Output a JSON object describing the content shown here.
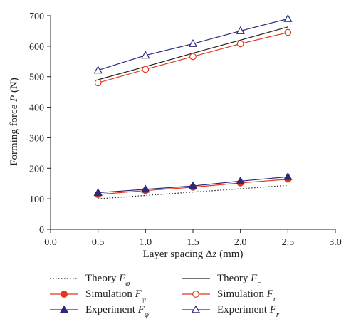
{
  "chart_data": {
    "type": "line",
    "xlabel": "Layer spacing Δz (mm)",
    "ylabel": "Forming force P (N)",
    "xlim": [
      0.0,
      3.0
    ],
    "ylim": [
      0,
      700
    ],
    "xticks": [
      "0.0",
      "0.5",
      "1.0",
      "1.5",
      "2.0",
      "2.5",
      "3.0"
    ],
    "yticks": [
      "0",
      "100",
      "200",
      "300",
      "400",
      "500",
      "600",
      "700"
    ],
    "x": [
      0.5,
      1.0,
      1.5,
      2.0,
      2.5
    ],
    "legend_position": "bottom",
    "series": [
      {
        "name": "Theory Fφ",
        "values": [
          100,
          111,
          122,
          133,
          144
        ],
        "color": "#231f20",
        "line": "dotted",
        "marker": "none"
      },
      {
        "name": "Simulation Fφ",
        "values": [
          114,
          127,
          138,
          152,
          164
        ],
        "color": "#e2371f",
        "line": "solid",
        "marker": "circle-filled"
      },
      {
        "name": "Experiment Fφ",
        "values": [
          120,
          131,
          142,
          158,
          172
        ],
        "color": "#2a2a7c",
        "line": "solid",
        "marker": "triangle-filled"
      },
      {
        "name": "Theory Fr",
        "values": [
          490,
          533,
          577,
          620,
          663
        ],
        "color": "#231f20",
        "line": "solid",
        "marker": "none"
      },
      {
        "name": "Simulation Fr",
        "values": [
          480,
          524,
          566,
          608,
          645
        ],
        "color": "#e2371f",
        "line": "solid",
        "marker": "circle-open"
      },
      {
        "name": "Experiment Fr",
        "values": [
          521,
          570,
          608,
          650,
          690
        ],
        "color": "#2a2a7c",
        "line": "solid",
        "marker": "triangle-open"
      }
    ]
  },
  "legend": {
    "entries": [
      {
        "prefix": "Theory ",
        "sym": "F",
        "sub": "φ"
      },
      {
        "prefix": "Simulation ",
        "sym": "F",
        "sub": "φ"
      },
      {
        "prefix": "Experiment ",
        "sym": "F",
        "sub": "φ"
      },
      {
        "prefix": "Theory ",
        "sym": "F",
        "sub": "r"
      },
      {
        "prefix": "Simulation ",
        "sym": "F",
        "sub": "r"
      },
      {
        "prefix": "Experiment ",
        "sym": "F",
        "sub": "r"
      }
    ]
  },
  "axis_title": {
    "x_prefix": "Layer spacing Δ",
    "x_var": "z",
    "x_suffix": " (mm)",
    "y_prefix": "Forming force ",
    "y_var": "P",
    "y_suffix": " (N)"
  }
}
